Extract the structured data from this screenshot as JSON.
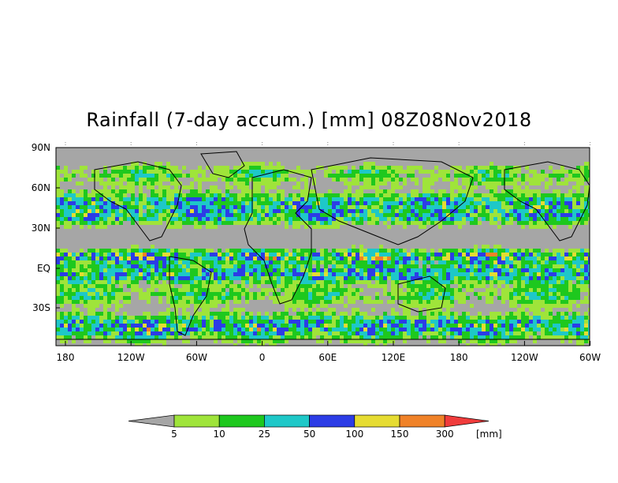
{
  "title": "Rainfall (7-day accum.) [mm] 08Z08Nov2018",
  "map": {
    "lat_labels": [
      "90N",
      "60N",
      "30N",
      "EQ",
      "30S"
    ],
    "lon_labels": [
      "180",
      "120W",
      "60W",
      "0",
      "60E",
      "120E",
      "180",
      "120W",
      "60W"
    ],
    "background_color": "#a6a6a6"
  },
  "legend": {
    "unit": "[mm]",
    "thresholds": [
      "5",
      "10",
      "25",
      "50",
      "100",
      "150",
      "300"
    ],
    "colors": [
      "#a6a6a6",
      "#9fe43a",
      "#1ec81e",
      "#1ec8c8",
      "#2c3ce6",
      "#e6dc32",
      "#f08228",
      "#f03c3c"
    ]
  }
}
